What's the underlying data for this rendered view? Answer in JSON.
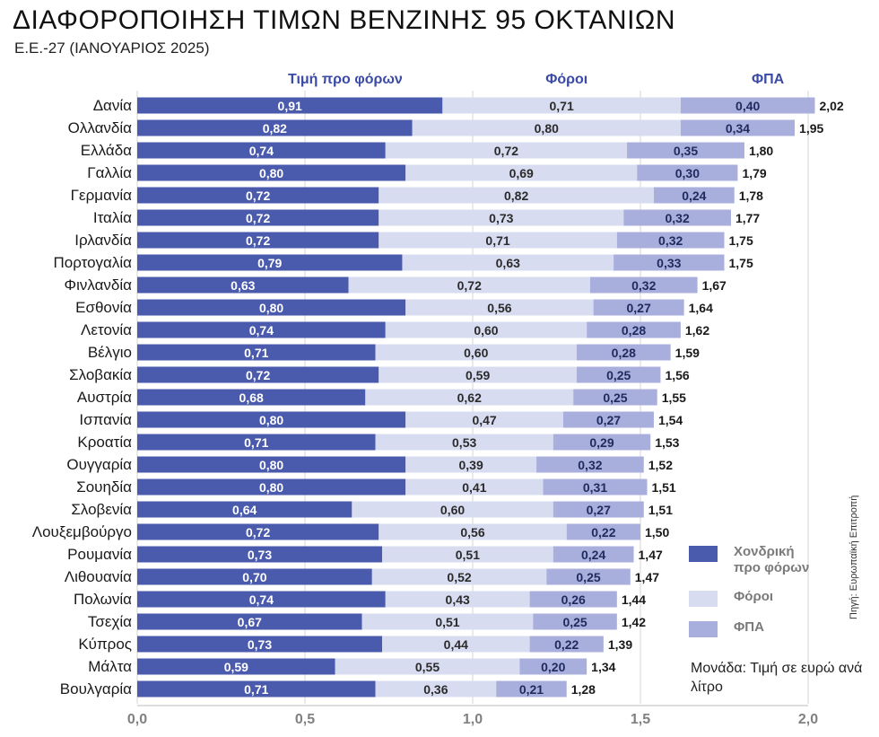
{
  "header": {
    "title": "ΔΙΑΦΟΡΟΠΟΙΗΣΗ ΤΙΜΩΝ ΒΕΝΖΙΝΗΣ 95 ΟΚΤΑΝΙΩΝ",
    "subtitle": "Ε.Ε.-27 (ΙΑΝΟΥΑΡΙΟΣ 2025)"
  },
  "legend": {
    "items": [
      {
        "label": "Χονδρική\nπρο φόρων",
        "color": "#4a5aad"
      },
      {
        "label": "Φόροι",
        "color": "#d8dcf1"
      },
      {
        "label": "ΦΠΑ",
        "color": "#a9afdc"
      }
    ]
  },
  "unit_note": "Μονάδα: Τιμή σε ευρώ ανά λίτρο",
  "source": "Πηγή: Ευρωπαϊκή Επιτροπή",
  "chart_data": {
    "type": "bar",
    "orientation": "horizontal",
    "stacked": true,
    "categories": [
      "Δανία",
      "Ολλανδία",
      "Ελλάδα",
      "Γαλλία",
      "Γερμανία",
      "Ιταλία",
      "Ιρλανδία",
      "Πορτογαλία",
      "Φινλανδία",
      "Εσθονία",
      "Λετονία",
      "Βέλγιο",
      "Σλοβακία",
      "Αυστρία",
      "Ισπανία",
      "Κροατία",
      "Ουγγαρία",
      "Σουηδία",
      "Σλοβενία",
      "Λουξεμβούργο",
      "Ρουμανία",
      "Λιθουανία",
      "Πολωνία",
      "Τσεχία",
      "Κύπρος",
      "Μάλτα",
      "Βουλγαρία"
    ],
    "series": [
      {
        "name": "Τιμή προ φόρων",
        "color": "#4a5aad",
        "label_color": "#ffffff",
        "values": [
          0.91,
          0.82,
          0.74,
          0.8,
          0.72,
          0.72,
          0.72,
          0.79,
          0.63,
          0.8,
          0.74,
          0.71,
          0.72,
          0.68,
          0.8,
          0.71,
          0.8,
          0.8,
          0.64,
          0.72,
          0.73,
          0.7,
          0.74,
          0.67,
          0.73,
          0.59,
          0.71
        ],
        "value_labels": [
          "0,91",
          "0,82",
          "0,74",
          "0,80",
          "0,72",
          "0,72",
          "0,72",
          "0,79",
          "0,63",
          "0,80",
          "0,74",
          "0,71",
          "0,72",
          "0,68",
          "0,80",
          "0,71",
          "0,80",
          "0,80",
          "0,64",
          "0,72",
          "0,73",
          "0,70",
          "0,74",
          "0,67",
          "0,73",
          "0,59",
          "0,71"
        ]
      },
      {
        "name": "Φόροι",
        "color": "#d8dcf1",
        "label_color": "#2b2b2b",
        "values": [
          0.71,
          0.8,
          0.72,
          0.69,
          0.82,
          0.73,
          0.71,
          0.63,
          0.72,
          0.56,
          0.6,
          0.6,
          0.59,
          0.62,
          0.47,
          0.53,
          0.39,
          0.41,
          0.6,
          0.56,
          0.51,
          0.52,
          0.43,
          0.51,
          0.44,
          0.55,
          0.36
        ],
        "value_labels": [
          "0,71",
          "0,80",
          "0,72",
          "0,69",
          "0,82",
          "0,73",
          "0,71",
          "0,63",
          "0,72",
          "0,56",
          "0,60",
          "0,60",
          "0,59",
          "0,62",
          "0,47",
          "0,53",
          "0,39",
          "0,41",
          "0,60",
          "0,56",
          "0,51",
          "0,52",
          "0,43",
          "0,51",
          "0,44",
          "0,55",
          "0,36"
        ]
      },
      {
        "name": "ΦΠΑ",
        "color": "#a9afdc",
        "label_color": "#1f2a5e",
        "values": [
          0.4,
          0.34,
          0.35,
          0.3,
          0.24,
          0.32,
          0.32,
          0.33,
          0.32,
          0.27,
          0.28,
          0.28,
          0.25,
          0.25,
          0.27,
          0.29,
          0.32,
          0.31,
          0.27,
          0.22,
          0.24,
          0.25,
          0.26,
          0.25,
          0.22,
          0.2,
          0.21
        ],
        "value_labels": [
          "0,40",
          "0,34",
          "0,35",
          "0,30",
          "0,24",
          "0,32",
          "0,32",
          "0,33",
          "0,32",
          "0,27",
          "0,28",
          "0,28",
          "0,25",
          "0,25",
          "0,27",
          "0,29",
          "0,32",
          "0,31",
          "0,27",
          "0,22",
          "0,24",
          "0,25",
          "0,26",
          "0,25",
          "0,22",
          "0,20",
          "0,21"
        ]
      }
    ],
    "totals": [
      2.02,
      1.95,
      1.8,
      1.79,
      1.78,
      1.77,
      1.75,
      1.75,
      1.67,
      1.64,
      1.62,
      1.59,
      1.56,
      1.55,
      1.54,
      1.53,
      1.52,
      1.51,
      1.51,
      1.5,
      1.47,
      1.47,
      1.44,
      1.42,
      1.39,
      1.34,
      1.28
    ],
    "total_labels": [
      "2,02",
      "1,95",
      "1,80",
      "1,79",
      "1,78",
      "1,77",
      "1,75",
      "1,75",
      "1,67",
      "1,64",
      "1,62",
      "1,59",
      "1,56",
      "1,55",
      "1,54",
      "1,53",
      "1,52",
      "1,51",
      "1,51",
      "1,50",
      "1,47",
      "1,47",
      "1,44",
      "1,42",
      "1,39",
      "1,34",
      "1,28"
    ],
    "x_ticks": [
      0,
      0.5,
      1.0,
      1.5,
      2.0
    ],
    "x_tick_labels": [
      "0,0",
      "0,5",
      "1,0",
      "1,5",
      "2,0"
    ],
    "xlim": [
      0,
      2.0
    ],
    "grid": true,
    "legend_position": "right"
  }
}
